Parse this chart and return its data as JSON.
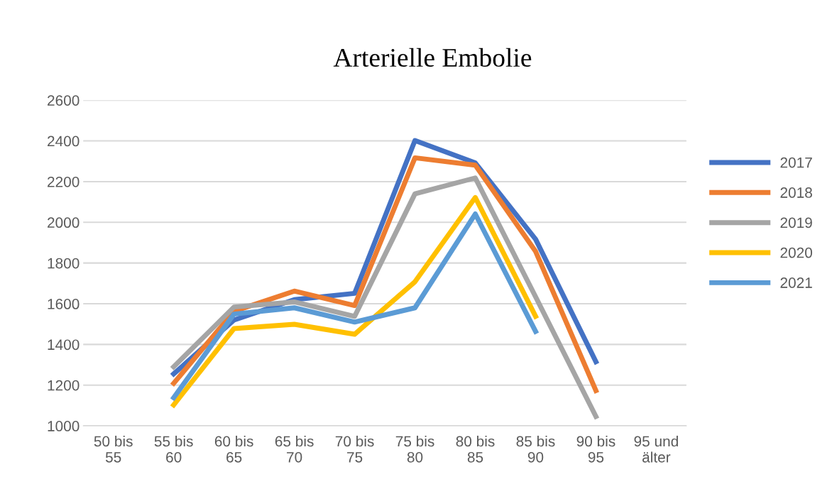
{
  "chart_data": {
    "type": "line",
    "title": "Arterielle Embolie",
    "categories": [
      "50 bis 55",
      "55 bis 60",
      "60 bis 65",
      "65 bis 70",
      "70 bis 75",
      "75 bis 80",
      "80 bis 85",
      "85 bis 90",
      "90 bis 95",
      "95 und älter"
    ],
    "series": [
      {
        "name": "2017",
        "color": "#4472c4",
        "values": [
          null,
          1255,
          1520,
          1620,
          1651,
          2402,
          2292,
          1917,
          1315,
          null
        ]
      },
      {
        "name": "2018",
        "color": "#ed7d31",
        "values": [
          null,
          1209,
          1563,
          1662,
          1591,
          2317,
          2281,
          1857,
          1173,
          null
        ]
      },
      {
        "name": "2019",
        "color": "#a5a5a5",
        "values": [
          null,
          1290,
          1584,
          1609,
          1538,
          2140,
          2218,
          1634,
          1046,
          null
        ]
      },
      {
        "name": "2020",
        "color": "#ffc000",
        "values": [
          null,
          1103,
          1478,
          1499,
          1450,
          1708,
          2122,
          1538,
          null,
          null
        ]
      },
      {
        "name": "2021",
        "color": "#5b9bd5",
        "values": [
          null,
          1138,
          1549,
          1580,
          1510,
          1580,
          2041,
          1464,
          null,
          null
        ]
      }
    ],
    "ylim": [
      1000,
      2600
    ],
    "yticks": [
      1000,
      1200,
      1400,
      1600,
      1800,
      2000,
      2200,
      2400,
      2600
    ],
    "grid": "y",
    "legend": "right",
    "marker": "none",
    "line_style": "solid"
  }
}
